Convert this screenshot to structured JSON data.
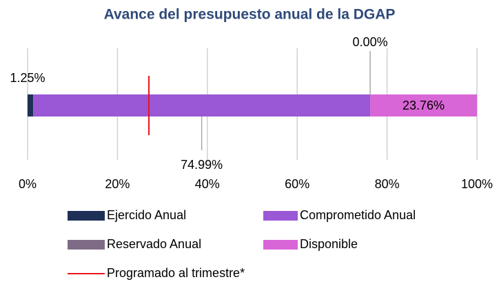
{
  "chart_data": {
    "type": "stacked_bar_horizontal",
    "title": "Avance del presupuesto anual de la DGAP",
    "categories": [
      null
    ],
    "series": [
      {
        "name": "Ejercido Anual",
        "color": "#1f3057",
        "values": [
          1.25
        ],
        "value_labels": [
          "1.25%"
        ]
      },
      {
        "name": "Comprometido Anual",
        "color": "#9a57d6",
        "values": [
          74.99
        ],
        "value_labels": [
          "74.99%"
        ]
      },
      {
        "name": "Reservado Anual",
        "color": "#7f6b85",
        "values": [
          0.0
        ],
        "value_labels": [
          "0.00%"
        ]
      },
      {
        "name": "Disponible",
        "color": "#d966d6",
        "values": [
          23.76
        ],
        "value_labels": [
          "23.76%"
        ]
      }
    ],
    "reference_lines": [
      {
        "name": "Programado al trimestre*",
        "value": 27,
        "color": "#e8141c"
      }
    ],
    "xlim": [
      0,
      100
    ],
    "xticks": [
      {
        "value": 0,
        "label": "0%"
      },
      {
        "value": 20,
        "label": "20%"
      },
      {
        "value": 40,
        "label": "40%"
      },
      {
        "value": 60,
        "label": "60%"
      },
      {
        "value": 80,
        "label": "80%"
      },
      {
        "value": 100,
        "label": "100%"
      }
    ],
    "grid": true,
    "legend": "bottom"
  }
}
